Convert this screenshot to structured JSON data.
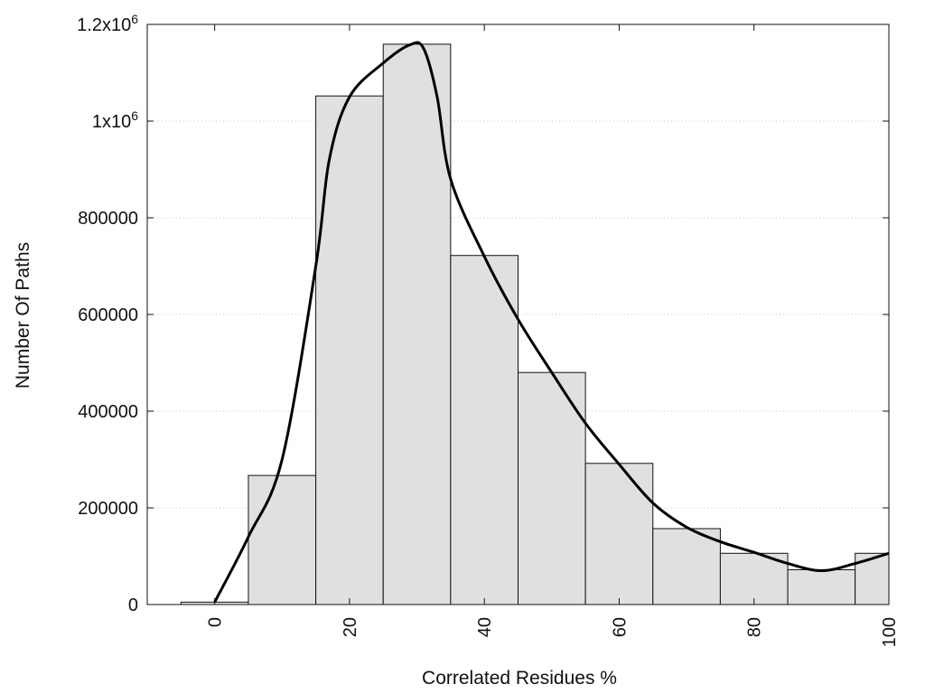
{
  "chart_data": {
    "type": "bar",
    "xlabel": "Correlated Residues %",
    "ylabel": "Number Of Paths",
    "xlim": [
      -10,
      100
    ],
    "ylim": [
      0,
      1200000
    ],
    "grid": {
      "horizontal": true,
      "vertical": false,
      "style": "dotted"
    },
    "x_ticks": [
      "0",
      "20",
      "40",
      "60",
      "80",
      "100"
    ],
    "y_ticks": [
      "0",
      "200000",
      "400000",
      "600000",
      "800000",
      "1x10",
      "1.2x10"
    ],
    "y_tick_superscript": "6",
    "bar_width": 10,
    "series": [
      {
        "type": "bar",
        "x": [
          0,
          10,
          20,
          30,
          40,
          50,
          60,
          70,
          80,
          90,
          100
        ],
        "values": [
          5000,
          267000,
          1052000,
          1159000,
          722000,
          480000,
          292000,
          157000,
          106000,
          72000,
          106000
        ]
      },
      {
        "type": "line",
        "x": [
          0,
          5,
          10,
          15,
          17,
          20,
          25,
          29,
          31,
          33,
          35,
          40,
          45,
          50,
          55,
          60,
          65,
          70,
          75,
          80,
          85,
          90,
          95,
          100
        ],
        "values": [
          5000,
          140000,
          300000,
          700000,
          920000,
          1050000,
          1120000,
          1158000,
          1150000,
          1050000,
          880000,
          720000,
          590000,
          480000,
          375000,
          290000,
          210000,
          160000,
          130000,
          108000,
          85000,
          70000,
          85000,
          106000
        ]
      }
    ],
    "colors": {
      "bar_fill": "#e0e0e0",
      "bar_stroke": "#111111",
      "line": "#000000",
      "grid": "#c8c8c8"
    }
  }
}
